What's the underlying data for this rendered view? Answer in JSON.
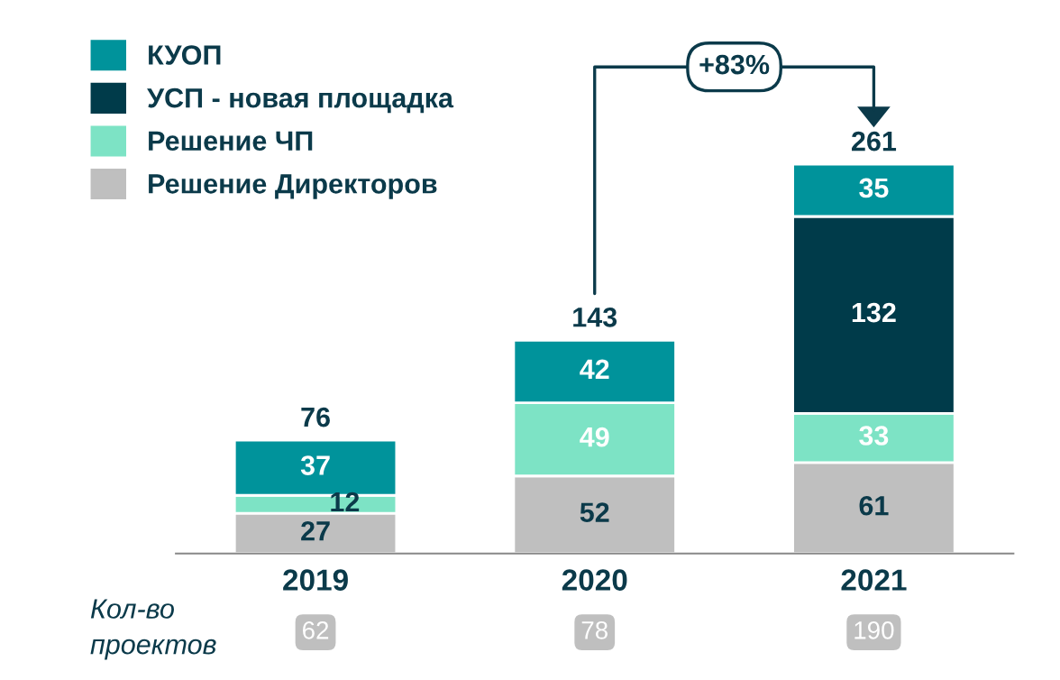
{
  "chart_data": {
    "type": "bar",
    "stacked": true,
    "categories": [
      "2019",
      "2020",
      "2021"
    ],
    "series": [
      {
        "name": "Решение Директоров",
        "color": "#bfbfbf",
        "values": [
          27,
          52,
          61
        ]
      },
      {
        "name": "Решение ЧП",
        "color": "#7de3c5",
        "values": [
          12,
          49,
          33
        ]
      },
      {
        "name": "УСП - новая площадка",
        "color": "#003b4a",
        "values": [
          null,
          null,
          132
        ]
      },
      {
        "name": "КУОП",
        "color": "#00939b",
        "values": [
          37,
          42,
          35
        ]
      }
    ],
    "data_labels": true,
    "totals": [
      "76",
      "143",
      "261"
    ],
    "legend": "top left",
    "grid": false,
    "annotations": [
      "+83%",
      "Кол-во проектов",
      "62",
      "78",
      "190"
    ]
  }
}
